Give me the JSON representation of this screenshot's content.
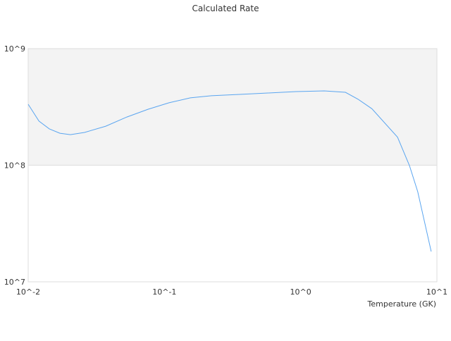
{
  "chart_data": {
    "type": "line",
    "title": "Calculated Rate",
    "xlabel": "Temperature (GK)",
    "ylabel": "",
    "x_scale": "log",
    "y_scale": "log",
    "xlim": [
      0.01,
      10
    ],
    "ylim": [
      10000000,
      1000000000
    ],
    "x_ticks": [
      {
        "value": 0.01,
        "label": "10^-2"
      },
      {
        "value": 0.1,
        "label": "10^-1"
      },
      {
        "value": 1,
        "label": "10^0"
      },
      {
        "value": 10,
        "label": "10^1"
      }
    ],
    "y_ticks": [
      {
        "value": 1000000000,
        "label": "10^9"
      },
      {
        "value": 100000000,
        "label": "10^8"
      },
      {
        "value": 10000000,
        "label": "10^7"
      }
    ],
    "grid": false,
    "band": {
      "from": 100000000,
      "to": 1000000000,
      "color": "#f3f3f3"
    },
    "series": [
      {
        "color": "#5aa5f0",
        "x": [
          0.01,
          0.012,
          0.0143,
          0.0171,
          0.0204,
          0.0259,
          0.0371,
          0.053,
          0.0757,
          0.108,
          0.155,
          0.221,
          0.356,
          0.574,
          0.925,
          1.49,
          2.13,
          2.64,
          3.33,
          5.14,
          6.29,
          7.23,
          9.08
        ],
        "y": [
          333000000,
          239000000,
          205000000,
          188000000,
          183000000,
          191000000,
          216000000,
          259000000,
          302000000,
          343000000,
          378000000,
          394000000,
          405000000,
          416000000,
          428000000,
          434000000,
          422000000,
          368000000,
          305000000,
          174000000,
          99000000,
          59300000,
          18200000
        ]
      }
    ]
  }
}
